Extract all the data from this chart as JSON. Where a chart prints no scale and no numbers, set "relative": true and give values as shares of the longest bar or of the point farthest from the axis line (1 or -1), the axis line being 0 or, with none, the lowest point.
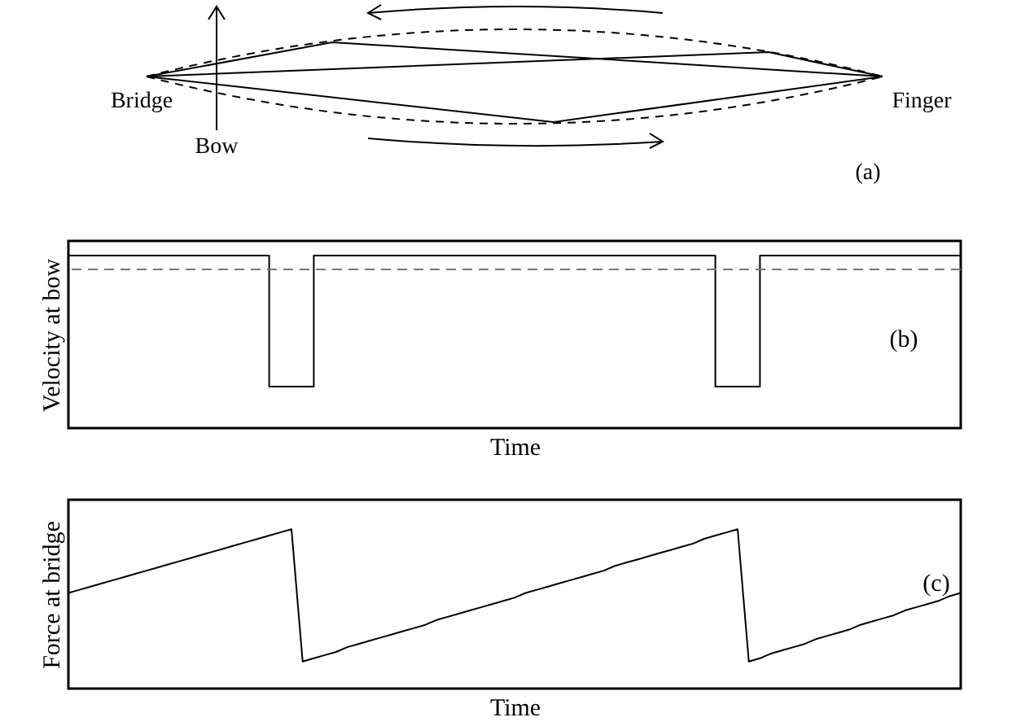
{
  "chart_data": [
    {
      "type": "other",
      "annotations": [
        "Bridge",
        "Bow",
        "Finger",
        "(a)"
      ]
    },
    {
      "type": "step",
      "ylabel": "Velocity at bow",
      "xlabel": "Time",
      "relative": true,
      "annotations": [
        "(b)"
      ],
      "grid": false,
      "legend": false,
      "categories": [
        null,
        null,
        null,
        null,
        null,
        null,
        null,
        null,
        null,
        null,
        null,
        null,
        null,
        null,
        null,
        null,
        null,
        null,
        null,
        null,
        null,
        null,
        null,
        null,
        null,
        null,
        null,
        null,
        null,
        null,
        null,
        null,
        null,
        null,
        null,
        null,
        null,
        null,
        null,
        null,
        null
      ],
      "series": [
        {
          "color": "#000000",
          "values": [
            1,
            1,
            1,
            1,
            1,
            1,
            1,
            1,
            1,
            0.24,
            0.24,
            1,
            1,
            1,
            1,
            1,
            1,
            1,
            1,
            1,
            1,
            1,
            1,
            1,
            1,
            1,
            1,
            1,
            1,
            0.24,
            0.24,
            1,
            1,
            1,
            1,
            1,
            1,
            1,
            1,
            1,
            1
          ]
        }
      ],
      "ref_lines": [
        {
          "axis": "y",
          "value": 0.92,
          "color": "#777777",
          "line_style": "dashed"
        }
      ]
    },
    {
      "type": "line",
      "ylabel": "Force at bridge",
      "xlabel": "Time",
      "relative": true,
      "annotations": [
        "(c)"
      ],
      "grid": false,
      "legend": false,
      "categories": [
        null,
        null,
        null,
        null,
        null,
        null,
        null,
        null,
        null,
        null,
        null,
        null,
        null,
        null,
        null,
        null,
        null,
        null,
        null,
        null,
        null,
        null,
        null,
        null,
        null,
        null,
        null,
        null,
        null,
        null,
        null,
        null,
        null,
        null,
        null,
        null,
        null,
        null,
        null,
        null,
        null,
        null,
        null,
        null,
        null,
        null,
        null,
        null,
        null,
        null,
        null,
        null,
        null,
        null,
        null,
        null,
        null,
        null,
        null,
        null,
        null,
        null,
        null,
        null,
        null,
        null,
        null,
        null,
        null,
        null,
        null,
        null,
        null,
        null,
        null,
        null,
        null,
        null,
        null,
        null,
        null
      ],
      "series": [
        {
          "color": "#000000",
          "values": [
            0.6,
            0.62,
            0.64,
            0.66,
            0.68,
            0.7,
            0.72,
            0.74,
            0.76,
            0.78,
            0.8,
            0.82,
            0.84,
            0.86,
            0.88,
            0.9,
            0.92,
            0.94,
            0.96,
            0.98,
            1,
            0.17,
            0.19,
            0.21,
            0.23,
            0.26,
            0.28,
            0.3,
            0.32,
            0.34,
            0.36,
            0.38,
            0.4,
            0.43,
            0.45,
            0.47,
            0.49,
            0.51,
            0.53,
            0.55,
            0.57,
            0.6,
            0.62,
            0.64,
            0.66,
            0.68,
            0.7,
            0.72,
            0.74,
            0.77,
            0.79,
            0.81,
            0.83,
            0.85,
            0.87,
            0.89,
            0.91,
            0.94,
            0.96,
            0.98,
            1,
            0.17,
            0.19,
            0.22,
            0.24,
            0.26,
            0.28,
            0.31,
            0.33,
            0.35,
            0.37,
            0.4,
            0.42,
            0.44,
            0.46,
            0.49,
            0.51,
            0.53,
            0.55,
            0.58,
            0.6
          ]
        }
      ]
    }
  ]
}
